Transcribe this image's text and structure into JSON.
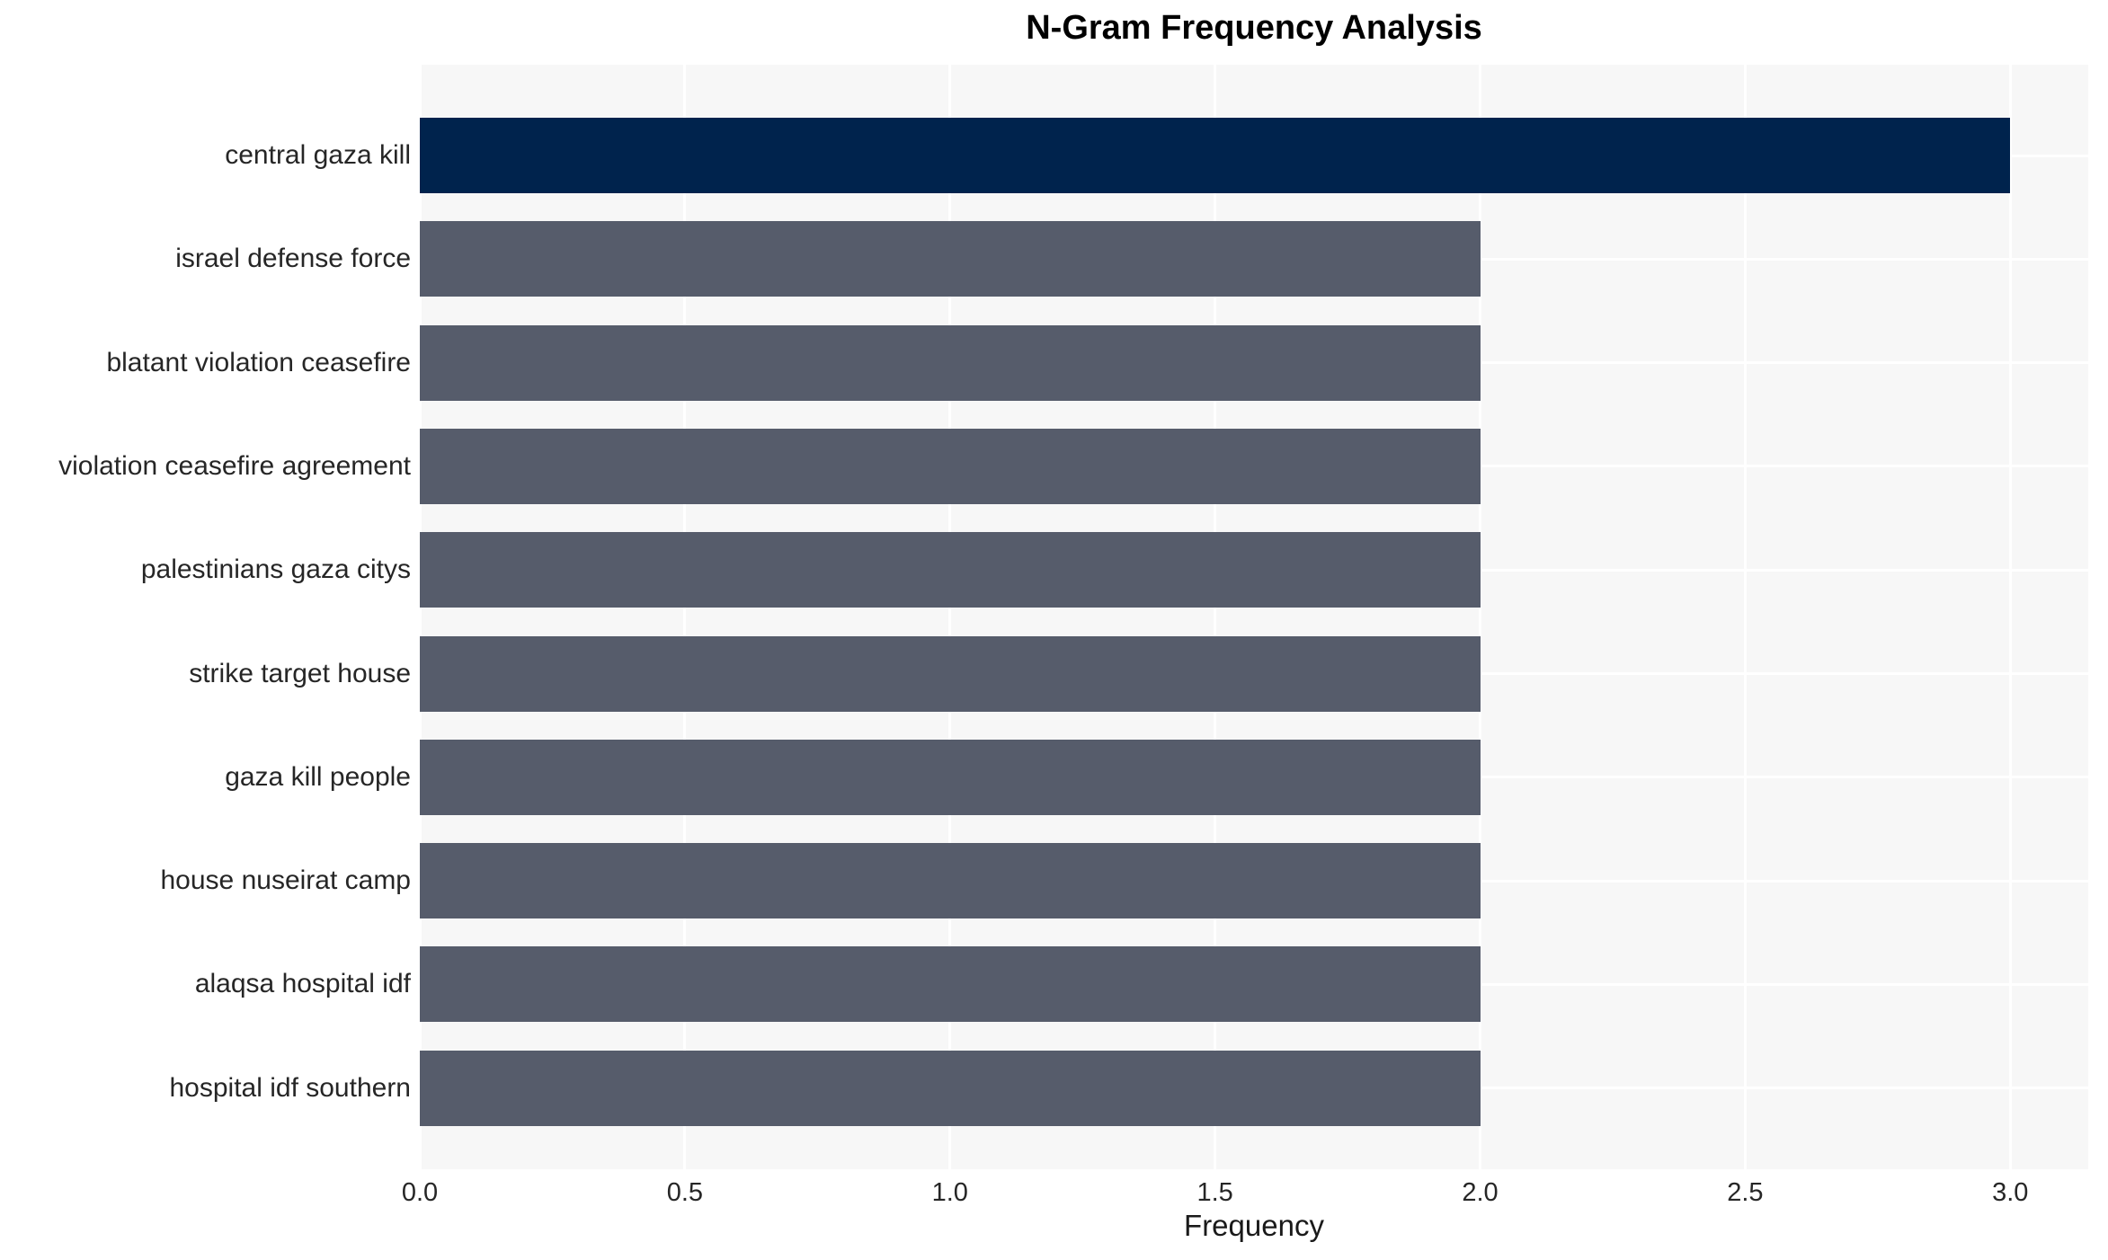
{
  "chart_data": {
    "type": "bar",
    "orientation": "horizontal",
    "title": "N-Gram Frequency Analysis",
    "xlabel": "Frequency",
    "categories": [
      "central gaza kill",
      "israel defense force",
      "blatant violation ceasefire",
      "violation ceasefire agreement",
      "palestinians gaza citys",
      "strike target house",
      "gaza kill people",
      "house nuseirat camp",
      "alaqsa hospital idf",
      "hospital idf southern"
    ],
    "values": [
      3,
      2,
      2,
      2,
      2,
      2,
      2,
      2,
      2,
      2
    ],
    "xtick_labels": [
      "0.0",
      "0.5",
      "1.0",
      "1.5",
      "2.0",
      "2.5",
      "3.0"
    ],
    "xlim": [
      0,
      3.147
    ],
    "grid": true,
    "legend": "none",
    "colors": {
      "bar_highlight": "#00234d",
      "bar_default": "#565c6b",
      "plot_background": "#f7f7f7",
      "gridline": "#ffffff",
      "text": "#262626"
    }
  }
}
